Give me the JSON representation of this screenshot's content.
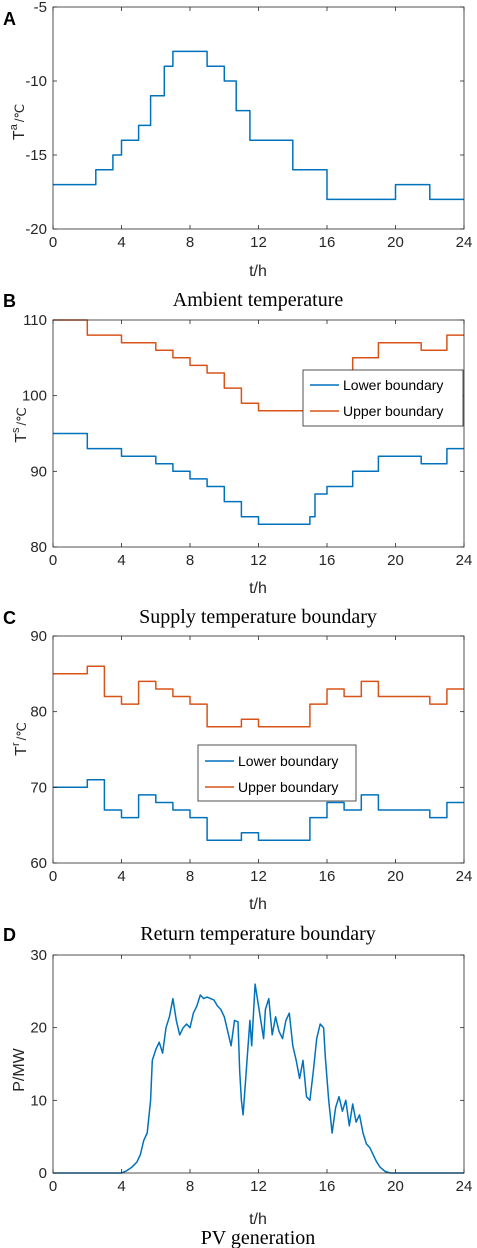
{
  "colors": {
    "blue": "#0072BD",
    "orange": "#D95319",
    "axis": "#262626"
  },
  "chart_data": [
    {
      "panel": "A",
      "type": "line",
      "caption": "Ambient temperature",
      "xlabel": "t/h",
      "ylabel": "T",
      "ylabel_sup": "a",
      "ylabel_unit": "/℃",
      "xlim": [
        0,
        24
      ],
      "ylim": [
        -20,
        -5
      ],
      "xticks": [
        0,
        4,
        8,
        12,
        16,
        20,
        24
      ],
      "yticks": [
        -20,
        -15,
        -10,
        -5
      ],
      "step": true,
      "legend": null,
      "series": [
        {
          "name": "",
          "color": "#0072BD",
          "points": [
            [
              0,
              -17
            ],
            [
              2.5,
              -17
            ],
            [
              2.5,
              -16
            ],
            [
              3.5,
              -16
            ],
            [
              3.5,
              -15
            ],
            [
              4,
              -15
            ],
            [
              4,
              -14
            ],
            [
              5,
              -14
            ],
            [
              5,
              -13
            ],
            [
              5.7,
              -13
            ],
            [
              5.7,
              -11
            ],
            [
              6.5,
              -11
            ],
            [
              6.5,
              -9
            ],
            [
              7,
              -9
            ],
            [
              7,
              -8
            ],
            [
              9,
              -8
            ],
            [
              9,
              -9
            ],
            [
              10,
              -9
            ],
            [
              10,
              -10
            ],
            [
              10.7,
              -10
            ],
            [
              10.7,
              -12
            ],
            [
              11.5,
              -12
            ],
            [
              11.5,
              -14
            ],
            [
              14,
              -14
            ],
            [
              14,
              -16
            ],
            [
              16,
              -16
            ],
            [
              16,
              -18
            ],
            [
              20,
              -18
            ],
            [
              20,
              -17
            ],
            [
              22,
              -17
            ],
            [
              22,
              -18
            ],
            [
              24,
              -18
            ]
          ]
        }
      ]
    },
    {
      "panel": "B",
      "type": "line",
      "caption": "Supply temperature boundary",
      "xlabel": "t/h",
      "ylabel": "T",
      "ylabel_sup": "s",
      "ylabel_unit": "/℃",
      "xlim": [
        0,
        24
      ],
      "ylim": [
        80,
        110
      ],
      "xticks": [
        0,
        4,
        8,
        12,
        16,
        20,
        24
      ],
      "yticks": [
        80,
        90,
        100,
        110
      ],
      "step": true,
      "legend": "center-right",
      "series": [
        {
          "name": "Lower boundary",
          "color": "#0072BD",
          "points": [
            [
              0,
              95
            ],
            [
              2,
              95
            ],
            [
              2,
              93
            ],
            [
              4,
              93
            ],
            [
              4,
              92
            ],
            [
              6,
              92
            ],
            [
              6,
              91
            ],
            [
              7,
              91
            ],
            [
              7,
              90
            ],
            [
              8,
              90
            ],
            [
              8,
              89
            ],
            [
              9,
              89
            ],
            [
              9,
              88
            ],
            [
              10,
              88
            ],
            [
              10,
              86
            ],
            [
              11,
              86
            ],
            [
              11,
              84
            ],
            [
              12,
              84
            ],
            [
              12,
              83
            ],
            [
              15,
              83
            ],
            [
              15,
              84
            ],
            [
              15.3,
              84
            ],
            [
              15.3,
              87
            ],
            [
              16,
              87
            ],
            [
              16,
              88
            ],
            [
              17.5,
              88
            ],
            [
              17.5,
              90
            ],
            [
              19,
              90
            ],
            [
              19,
              92
            ],
            [
              21.5,
              92
            ],
            [
              21.5,
              91
            ],
            [
              23,
              91
            ],
            [
              23,
              93
            ],
            [
              24,
              93
            ]
          ]
        },
        {
          "name": "Upper boundary",
          "color": "#D95319",
          "points": [
            [
              0,
              110
            ],
            [
              2,
              110
            ],
            [
              2,
              108
            ],
            [
              4,
              108
            ],
            [
              4,
              107
            ],
            [
              6,
              107
            ],
            [
              6,
              106
            ],
            [
              7,
              106
            ],
            [
              7,
              105
            ],
            [
              8,
              105
            ],
            [
              8,
              104
            ],
            [
              9,
              104
            ],
            [
              9,
              103
            ],
            [
              10,
              103
            ],
            [
              10,
              101
            ],
            [
              11,
              101
            ],
            [
              11,
              99
            ],
            [
              12,
              99
            ],
            [
              12,
              98
            ],
            [
              15,
              98
            ],
            [
              15.5,
              98
            ],
            [
              16,
              98
            ],
            [
              16,
              102
            ],
            [
              17.5,
              102
            ],
            [
              17.5,
              105
            ],
            [
              19,
              105
            ],
            [
              19,
              107
            ],
            [
              21.5,
              107
            ],
            [
              21.5,
              106
            ],
            [
              23,
              106
            ],
            [
              23,
              108
            ],
            [
              24,
              108
            ]
          ]
        }
      ]
    },
    {
      "panel": "C",
      "type": "line",
      "caption": "Return temperature boundary",
      "xlabel": "t/h",
      "ylabel": "T",
      "ylabel_sup": "r",
      "ylabel_unit": "/℃",
      "xlim": [
        0,
        24
      ],
      "ylim": [
        60,
        90
      ],
      "xticks": [
        0,
        4,
        8,
        12,
        16,
        20,
        24
      ],
      "yticks": [
        60,
        70,
        80,
        90
      ],
      "step": true,
      "legend": "center",
      "series": [
        {
          "name": "Lower boundary",
          "color": "#0072BD",
          "points": [
            [
              0,
              70
            ],
            [
              2,
              70
            ],
            [
              2,
              71
            ],
            [
              3,
              71
            ],
            [
              3,
              67
            ],
            [
              4,
              67
            ],
            [
              4,
              66
            ],
            [
              5,
              66
            ],
            [
              5,
              69
            ],
            [
              6,
              69
            ],
            [
              6,
              68
            ],
            [
              7,
              68
            ],
            [
              7,
              67
            ],
            [
              8,
              67
            ],
            [
              8,
              66
            ],
            [
              9,
              66
            ],
            [
              9,
              63
            ],
            [
              11,
              63
            ],
            [
              11,
              64
            ],
            [
              12,
              64
            ],
            [
              12,
              63
            ],
            [
              15,
              63
            ],
            [
              15,
              66
            ],
            [
              16,
              66
            ],
            [
              16,
              68
            ],
            [
              17,
              68
            ],
            [
              17,
              67
            ],
            [
              18,
              67
            ],
            [
              18,
              69
            ],
            [
              19,
              69
            ],
            [
              19,
              67
            ],
            [
              22,
              67
            ],
            [
              22,
              66
            ],
            [
              23,
              66
            ],
            [
              23,
              68
            ],
            [
              24,
              68
            ]
          ]
        },
        {
          "name": "Upper boundary",
          "color": "#D95319",
          "points": [
            [
              0,
              85
            ],
            [
              2,
              85
            ],
            [
              2,
              86
            ],
            [
              3,
              86
            ],
            [
              3,
              82
            ],
            [
              4,
              82
            ],
            [
              4,
              81
            ],
            [
              5,
              81
            ],
            [
              5,
              84
            ],
            [
              6,
              84
            ],
            [
              6,
              83
            ],
            [
              7,
              83
            ],
            [
              7,
              82
            ],
            [
              8,
              82
            ],
            [
              8,
              81
            ],
            [
              9,
              81
            ],
            [
              9,
              78
            ],
            [
              11,
              78
            ],
            [
              11,
              79
            ],
            [
              12,
              79
            ],
            [
              12,
              78
            ],
            [
              15,
              78
            ],
            [
              15,
              81
            ],
            [
              16,
              81
            ],
            [
              16,
              83
            ],
            [
              17,
              83
            ],
            [
              17,
              82
            ],
            [
              18,
              82
            ],
            [
              18,
              84
            ],
            [
              19,
              84
            ],
            [
              19,
              82
            ],
            [
              22,
              82
            ],
            [
              22,
              81
            ],
            [
              23,
              81
            ],
            [
              23,
              83
            ],
            [
              24,
              83
            ]
          ]
        }
      ]
    },
    {
      "panel": "D",
      "type": "line",
      "caption": "PV generation",
      "xlabel": "t/h",
      "ylabel": "P/MW",
      "ylabel_sup": "",
      "ylabel_unit": "",
      "xlim": [
        0,
        24
      ],
      "ylim": [
        0,
        30
      ],
      "xticks": [
        0,
        4,
        8,
        12,
        16,
        20,
        24
      ],
      "yticks": [
        0,
        10,
        20,
        30
      ],
      "step": false,
      "legend": null,
      "series": [
        {
          "name": "",
          "color": "#0072BD",
          "points": [
            [
              0,
              0
            ],
            [
              4,
              0
            ],
            [
              4.3,
              0.3
            ],
            [
              4.6,
              0.8
            ],
            [
              4.9,
              1.5
            ],
            [
              5.1,
              2.5
            ],
            [
              5.3,
              4.5
            ],
            [
              5.5,
              5.5
            ],
            [
              5.7,
              10
            ],
            [
              5.8,
              15.5
            ],
            [
              6.0,
              17
            ],
            [
              6.2,
              18
            ],
            [
              6.4,
              16.5
            ],
            [
              6.6,
              20
            ],
            [
              6.8,
              21.5
            ],
            [
              7.0,
              24
            ],
            [
              7.2,
              21
            ],
            [
              7.4,
              19
            ],
            [
              7.6,
              20
            ],
            [
              7.8,
              20.5
            ],
            [
              8.0,
              20
            ],
            [
              8.2,
              22
            ],
            [
              8.4,
              23
            ],
            [
              8.6,
              24.5
            ],
            [
              8.8,
              24
            ],
            [
              9.0,
              24.2
            ],
            [
              9.2,
              24
            ],
            [
              9.4,
              23.8
            ],
            [
              9.6,
              23
            ],
            [
              9.8,
              22.5
            ],
            [
              10.0,
              21.5
            ],
            [
              10.2,
              19.5
            ],
            [
              10.4,
              17.5
            ],
            [
              10.6,
              21
            ],
            [
              10.8,
              20.8
            ],
            [
              10.9,
              14
            ],
            [
              11.0,
              10
            ],
            [
              11.1,
              8
            ],
            [
              11.3,
              14.5
            ],
            [
              11.5,
              21
            ],
            [
              11.6,
              17.5
            ],
            [
              11.8,
              26
            ],
            [
              12.0,
              23
            ],
            [
              12.1,
              21.5
            ],
            [
              12.3,
              18.5
            ],
            [
              12.4,
              22.5
            ],
            [
              12.6,
              24
            ],
            [
              12.8,
              19
            ],
            [
              13.0,
              21.5
            ],
            [
              13.2,
              19.5
            ],
            [
              13.4,
              18.5
            ],
            [
              13.6,
              21
            ],
            [
              13.8,
              22
            ],
            [
              14.0,
              17.5
            ],
            [
              14.2,
              15.5
            ],
            [
              14.4,
              13
            ],
            [
              14.6,
              15.5
            ],
            [
              14.8,
              10.5
            ],
            [
              15.0,
              10
            ],
            [
              15.2,
              14
            ],
            [
              15.4,
              18.5
            ],
            [
              15.6,
              20.5
            ],
            [
              15.8,
              20
            ],
            [
              15.9,
              16
            ],
            [
              16.1,
              10
            ],
            [
              16.3,
              5.5
            ],
            [
              16.5,
              9
            ],
            [
              16.7,
              10.5
            ],
            [
              16.9,
              8.5
            ],
            [
              17.1,
              10
            ],
            [
              17.3,
              6.5
            ],
            [
              17.5,
              9.5
            ],
            [
              17.7,
              7
            ],
            [
              17.9,
              8
            ],
            [
              18.1,
              5.5
            ],
            [
              18.3,
              4
            ],
            [
              18.5,
              3.5
            ],
            [
              18.7,
              2.5
            ],
            [
              18.9,
              1.5
            ],
            [
              19.1,
              0.8
            ],
            [
              19.4,
              0.2
            ],
            [
              19.7,
              0
            ],
            [
              24,
              0
            ]
          ]
        }
      ]
    }
  ]
}
